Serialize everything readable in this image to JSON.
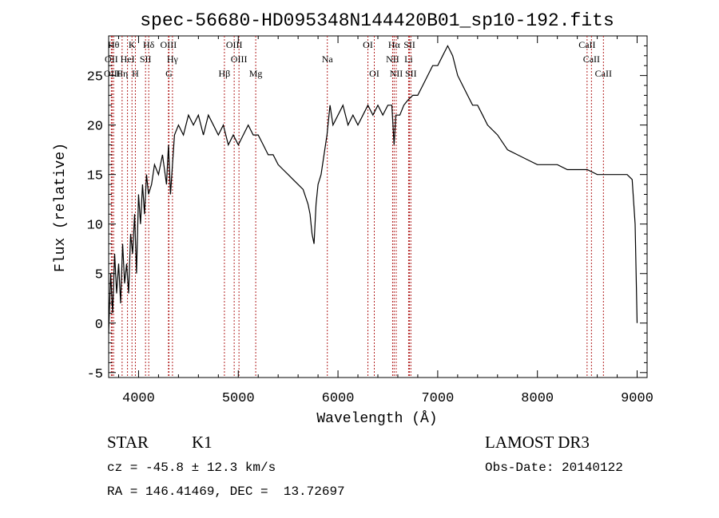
{
  "chart_data": {
    "type": "line",
    "title": "spec-56680-HD095348N144420B01_sp10-192.fits",
    "xlabel": "Wavelength (Å)",
    "ylabel": "Flux (relative)",
    "xlim": [
      3700,
      9100
    ],
    "ylim": [
      -5.5,
      29
    ],
    "xticks": [
      4000,
      5000,
      6000,
      7000,
      8000,
      9000
    ],
    "yticks": [
      -5,
      0,
      5,
      10,
      15,
      20,
      25
    ],
    "grid": false,
    "series": [
      {
        "x": [
          3700,
          3720,
          3740,
          3760,
          3780,
          3800,
          3820,
          3840,
          3860,
          3880,
          3900,
          3920,
          3940,
          3960,
          3980,
          4000,
          4020,
          4040,
          4060,
          4080,
          4100,
          4130,
          4160,
          4200,
          4240,
          4280,
          4300,
          4320,
          4340,
          4360,
          4400,
          4450,
          4500,
          4550,
          4600,
          4650,
          4700,
          4750,
          4800,
          4850,
          4900,
          4950,
          5000,
          5050,
          5100,
          5150,
          5200,
          5250,
          5300,
          5350,
          5400,
          5450,
          5500,
          5550,
          5600,
          5650,
          5700,
          5720,
          5740,
          5760,
          5780,
          5800,
          5830,
          5860,
          5890,
          5920,
          5950,
          6000,
          6050,
          6100,
          6150,
          6200,
          6250,
          6300,
          6350,
          6400,
          6450,
          6500,
          6540,
          6563,
          6580,
          6620,
          6660,
          6700,
          6750,
          6800,
          6850,
          6900,
          6950,
          7000,
          7050,
          7100,
          7150,
          7200,
          7250,
          7300,
          7350,
          7400,
          7450,
          7500,
          7600,
          7700,
          7800,
          7900,
          8000,
          8100,
          8200,
          8300,
          8400,
          8500,
          8600,
          8700,
          8800,
          8900,
          8950,
          8980,
          9000
        ],
        "y": [
          -1,
          5,
          1,
          7,
          3,
          6,
          2,
          8,
          4,
          6,
          3,
          9,
          7,
          11,
          5,
          13,
          10,
          14,
          11,
          15,
          13,
          14,
          16,
          15,
          17,
          14,
          18,
          13,
          16,
          19,
          20,
          19,
          21,
          20,
          21,
          19,
          21,
          20,
          19,
          20,
          18,
          19,
          18,
          19,
          20,
          19,
          19,
          18,
          17,
          17,
          16,
          15.5,
          15,
          14.5,
          14,
          13.5,
          12,
          11,
          9,
          8,
          12,
          14,
          15,
          17,
          19,
          22,
          20,
          21,
          22,
          20,
          21,
          20,
          21,
          22,
          21,
          22,
          21,
          22,
          22,
          18,
          21,
          21,
          22,
          22.5,
          23,
          23,
          24,
          25,
          26,
          26,
          27,
          28,
          27,
          25,
          24,
          23,
          22,
          22,
          21,
          20,
          19,
          17.5,
          17,
          16.5,
          16,
          16,
          16,
          15.5,
          15.5,
          15.5,
          15,
          15,
          15,
          15,
          14.5,
          10,
          0
        ]
      }
    ],
    "lines": [
      {
        "label": "OII",
        "x": 3727,
        "row": 2
      },
      {
        "label": "OIII",
        "x": 3735,
        "row": 3
      },
      {
        "label": "Hθ",
        "x": 3750,
        "row": 1
      },
      {
        "label": "Hη",
        "x": 3835,
        "row": 3
      },
      {
        "label": "HeI",
        "x": 3889,
        "row": 2
      },
      {
        "label": "K",
        "x": 3934,
        "row": 1
      },
      {
        "label": "SII",
        "x": 4070,
        "row": 2
      },
      {
        "label": "H",
        "x": 3968,
        "row": 3
      },
      {
        "label": "Hδ",
        "x": 4102,
        "row": 1
      },
      {
        "label": "OIII",
        "x": 4300,
        "row": 1
      },
      {
        "label": "Hγ",
        "x": 4340,
        "row": 2
      },
      {
        "label": "G",
        "x": 4305,
        "row": 3
      },
      {
        "label": "Hβ",
        "x": 4861,
        "row": 3
      },
      {
        "label": "OIII",
        "x": 4959,
        "row": 1
      },
      {
        "label": "OIII",
        "x": 5007,
        "row": 2
      },
      {
        "label": "Mg",
        "x": 5175,
        "row": 3
      },
      {
        "label": "Na",
        "x": 5893,
        "row": 2
      },
      {
        "label": "OI",
        "x": 6300,
        "row": 1
      },
      {
        "label": "OI",
        "x": 6364,
        "row": 3
      },
      {
        "label": "Hα",
        "x": 6563,
        "row": 1
      },
      {
        "label": "NII",
        "x": 6548,
        "row": 2
      },
      {
        "label": "NII",
        "x": 6584,
        "row": 3
      },
      {
        "label": "SII",
        "x": 6717,
        "row": 1
      },
      {
        "label": "Li",
        "x": 6708,
        "row": 2
      },
      {
        "label": "SII",
        "x": 6731,
        "row": 3
      },
      {
        "label": "CaII",
        "x": 8498,
        "row": 1
      },
      {
        "label": "CaII",
        "x": 8542,
        "row": 2
      },
      {
        "label": "CaII",
        "x": 8662,
        "row": 3
      }
    ]
  },
  "info": {
    "object_class": "STAR",
    "subclass": "K1",
    "survey": "LAMOST DR3",
    "redshift": "cz = -45.8 ± 12.3 km/s",
    "obs_date": "Obs-Date: 20140122",
    "coords": "RA = 146.41469, DEC =  13.72697"
  }
}
